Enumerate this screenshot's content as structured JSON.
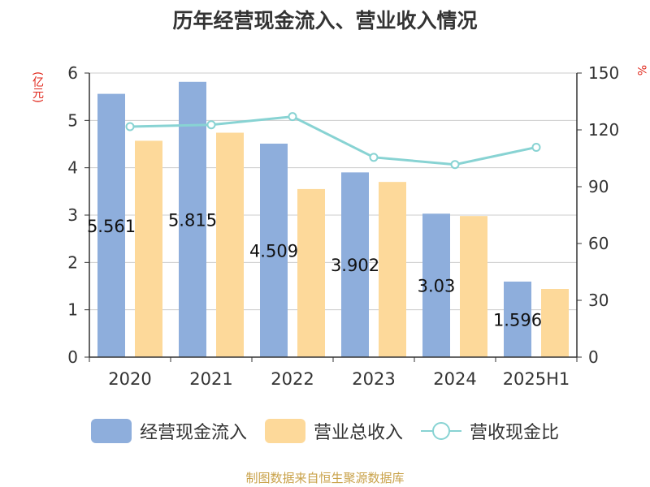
{
  "title": "历年经营现金流入、营业收入情况",
  "left_unit": "(亿元)",
  "right_unit": "%",
  "source": "制图数据来自恒生聚源数据库",
  "colors": {
    "cash_inflow": "#8eaedc",
    "revenue": "#fdd99a",
    "ratio": "#88d3d3",
    "axis": "#333333",
    "grid": "#cccccc",
    "unit": "#e0261a",
    "source": "#c9a24a"
  },
  "chart_data": {
    "type": "bar",
    "title": "历年经营现金流入、营业收入情况",
    "categories": [
      "2020",
      "2021",
      "2022",
      "2023",
      "2024",
      "2025H1"
    ],
    "series": [
      {
        "name": "经营现金流入",
        "type": "bar",
        "axis": "left",
        "values": [
          5.561,
          5.815,
          4.509,
          3.902,
          3.03,
          1.596
        ],
        "labels": [
          "5.561",
          "5.815",
          "4.509",
          "3.902",
          "3.03",
          "1.596"
        ]
      },
      {
        "name": "营业总收入",
        "type": "bar",
        "axis": "left",
        "values": [
          4.57,
          4.74,
          3.55,
          3.7,
          2.98,
          1.44
        ]
      },
      {
        "name": "营收现金比",
        "type": "line",
        "axis": "right",
        "values": [
          121.7,
          122.7,
          127.0,
          105.5,
          101.7,
          110.8
        ]
      }
    ],
    "y_left": {
      "label": "(亿元)",
      "min": 0,
      "max": 6,
      "ticks": [
        0,
        1,
        2,
        3,
        4,
        5,
        6
      ]
    },
    "y_right": {
      "label": "%",
      "min": 0,
      "max": 150,
      "ticks": [
        0,
        30,
        60,
        90,
        120,
        150
      ]
    },
    "grid": true,
    "legend": "bottom"
  }
}
